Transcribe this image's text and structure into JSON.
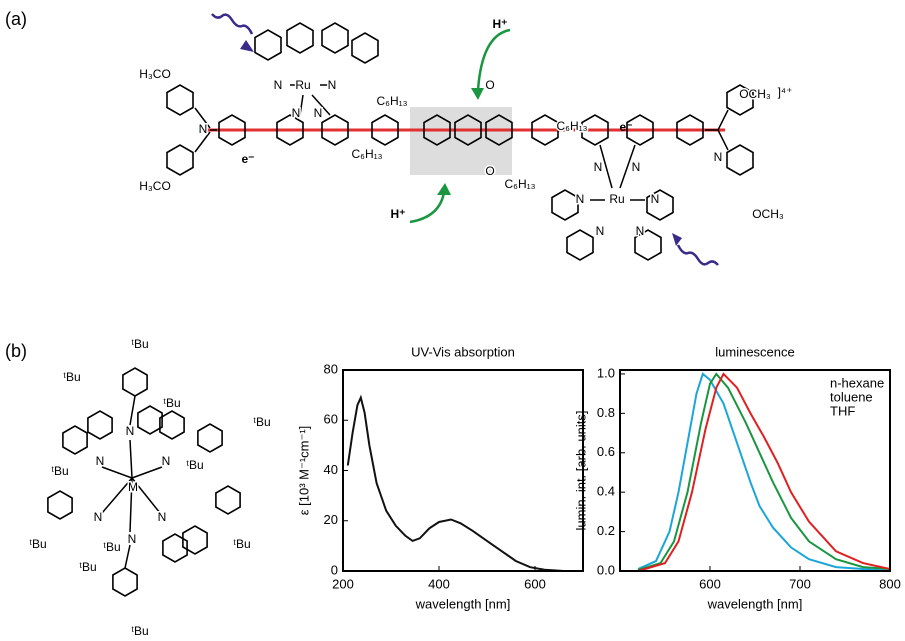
{
  "panel_labels": [
    "(a)",
    "(b)"
  ],
  "panel_a": {
    "labels": [
      "H₃CO",
      "H₃CO",
      "N",
      "N",
      "N",
      "Ru",
      "N",
      "N",
      "C₆H₁₃",
      "C₆H₁₃",
      "e⁻",
      "H⁺",
      "O",
      "O",
      "H⁺",
      "C₆H₁₃",
      "C₆H₁₃",
      "e⁻",
      "N",
      "N",
      "Ru",
      "N",
      "N",
      "N",
      "N",
      "N",
      "OCH₃",
      "]⁴⁺",
      "OCH₃"
    ]
  },
  "panel_b": {
    "labels": [
      "ᵗBu",
      "ᵗBu",
      "ᵗBu",
      "ᵗBu",
      "ᵗBu",
      "ᵗBu",
      "ᵗBu",
      "ᵗBu",
      "ᵗBu",
      "ᵗBu",
      "ᵗBu",
      "N",
      "N",
      "N",
      "N",
      "N",
      "N",
      "M"
    ]
  },
  "chart_data": [
    {
      "type": "line",
      "title": "UV-Vis absorption",
      "x_label": "wavelength [nm]",
      "y_label": "ε [10³ M⁻¹cm⁻¹]",
      "xlim": [
        200,
        700
      ],
      "ylim": [
        0,
        80
      ],
      "xticks": [
        200,
        400,
        600
      ],
      "yticks": [
        0,
        20,
        40,
        60,
        80
      ],
      "series": [
        {
          "color": "#111111",
          "x": [
            210,
            220,
            230,
            237,
            245,
            255,
            270,
            290,
            310,
            330,
            345,
            360,
            380,
            400,
            425,
            445,
            470,
            500,
            530,
            560,
            590,
            620,
            660,
            700
          ],
          "values": [
            42,
            55,
            66,
            69,
            63,
            50,
            35,
            24,
            18,
            14,
            12,
            13,
            17,
            19.5,
            20.5,
            19,
            16,
            12,
            8,
            4,
            1.5,
            0.5,
            0,
            0
          ]
        }
      ]
    },
    {
      "type": "line",
      "title": "luminescence",
      "x_label": "wavelength [nm]",
      "y_label": "lumin. int. [arb. units]",
      "xlim": [
        500,
        800
      ],
      "ylim": [
        0,
        1.02
      ],
      "xticks": [
        600,
        700,
        800
      ],
      "yticks": [
        {
          "value": 0,
          "label": "0.0"
        },
        {
          "value": 0.2,
          "label": "0.2"
        },
        {
          "value": 0.4,
          "label": "0.4"
        },
        {
          "value": 0.6,
          "label": "0.6"
        },
        {
          "value": 0.8,
          "label": "0.8"
        },
        {
          "value": 1,
          "label": "1.0"
        }
      ],
      "legend": "upper right",
      "series": [
        {
          "name": "n-hexane",
          "color": "#1ba6d9",
          "x": [
            520,
            540,
            555,
            565,
            575,
            585,
            592,
            600,
            615,
            630,
            645,
            655,
            670,
            690,
            710,
            740,
            770,
            800
          ],
          "values": [
            0.01,
            0.05,
            0.2,
            0.4,
            0.65,
            0.9,
            1,
            0.97,
            0.85,
            0.65,
            0.45,
            0.33,
            0.22,
            0.12,
            0.06,
            0.02,
            0.01,
            0
          ]
        },
        {
          "name": "toluene",
          "color": "#1a9641",
          "x": [
            520,
            545,
            560,
            575,
            590,
            600,
            607,
            620,
            640,
            655,
            670,
            690,
            710,
            740,
            770,
            800
          ],
          "values": [
            0.005,
            0.04,
            0.15,
            0.4,
            0.75,
            0.95,
            1,
            0.93,
            0.75,
            0.6,
            0.45,
            0.27,
            0.15,
            0.06,
            0.02,
            0.01
          ]
        },
        {
          "name": "THF",
          "color": "#e02020",
          "x": [
            520,
            550,
            565,
            580,
            595,
            607,
            615,
            630,
            645,
            660,
            675,
            690,
            710,
            740,
            770,
            800
          ],
          "values": [
            0,
            0.04,
            0.15,
            0.4,
            0.72,
            0.93,
            1,
            0.93,
            0.8,
            0.68,
            0.55,
            0.4,
            0.25,
            0.1,
            0.04,
            0.01
          ]
        }
      ]
    }
  ]
}
